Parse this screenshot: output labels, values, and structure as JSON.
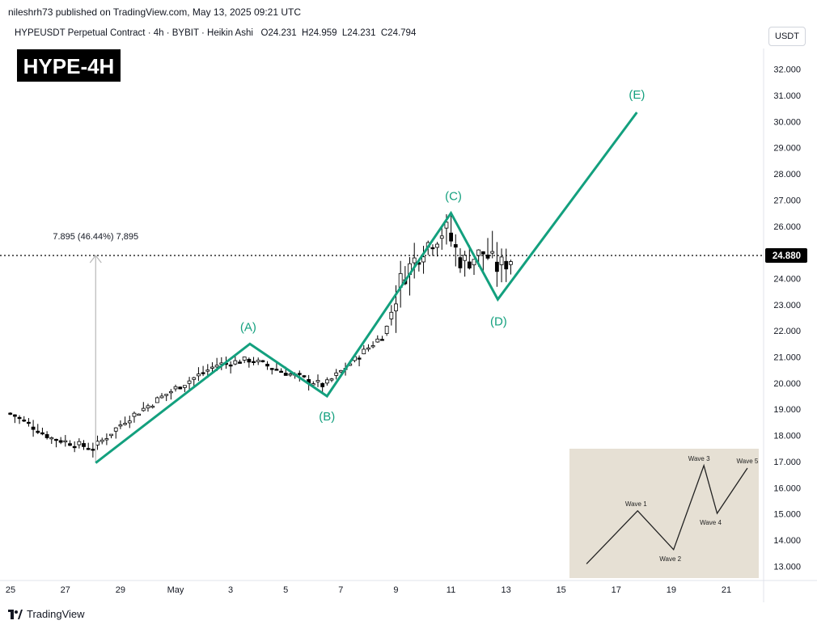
{
  "header": {
    "publisher": "nileshrh73 published on TradingView.com, May 13, 2025 09:21 UTC",
    "symbol": "HYPEUSDT Perpetual Contract",
    "interval": "4h",
    "exchange": "BYBIT",
    "chart_style": "Heikin Ashi",
    "ohlc": {
      "open": "O24.231",
      "high": "H24.959",
      "low": "L24.231",
      "close": "C24.794"
    },
    "currency": "USDT"
  },
  "badge": "HYPE-4H",
  "brand": "TradingView",
  "colors": {
    "wave": "#13a07e",
    "up_candle": "#ffffff",
    "down_candle": "#000000",
    "price_label_bg": "#000000",
    "inset_bg": "#e6e0d4"
  },
  "chart_data": {
    "type": "candlestick",
    "title": "HYPE-4H",
    "ylim": [
      12.5,
      32.8
    ],
    "yticks": [
      "32.000",
      "31.000",
      "30.000",
      "29.000",
      "28.000",
      "27.000",
      "26.000",
      "25.000",
      "24.000",
      "23.000",
      "22.000",
      "21.000",
      "20.000",
      "19.000",
      "18.000",
      "17.000",
      "16.000",
      "15.000",
      "14.000",
      "13.000"
    ],
    "xticks": [
      "25",
      "27",
      "29",
      "May",
      "3",
      "5",
      "7",
      "9",
      "11",
      "13",
      "15",
      "17",
      "19",
      "21"
    ],
    "xtick_days": [
      -6,
      -4,
      -2,
      0,
      2,
      4,
      6,
      8,
      10,
      12,
      14,
      16,
      18,
      20
    ],
    "xlim_days": [
      -6.05,
      21.0
    ],
    "current_price": {
      "value": 24.88,
      "label": "24.880"
    },
    "measure": {
      "label": "7.895 (46.44%) 7,895",
      "day": -2.9,
      "from": 16.95,
      "to": 24.88
    },
    "wave_path": [
      {
        "label": "",
        "day": -2.9,
        "price": 16.95
      },
      {
        "label": "(A)",
        "day": 2.7,
        "price": 21.5
      },
      {
        "label": "(B)",
        "day": 5.5,
        "price": 19.5
      },
      {
        "label": "(C)",
        "day": 10.0,
        "price": 26.5
      },
      {
        "label": "(D)",
        "day": 11.7,
        "price": 23.2
      },
      {
        "label": "(E)",
        "day": 16.75,
        "price": 30.35
      }
    ],
    "trend_anchors": [
      {
        "day": -6.0,
        "price": 18.85
      },
      {
        "day": -4.5,
        "price": 17.9
      },
      {
        "day": -3.0,
        "price": 17.5
      },
      {
        "day": -1.8,
        "price": 18.6
      },
      {
        "day": 0.0,
        "price": 19.8
      },
      {
        "day": 1.5,
        "price": 20.7
      },
      {
        "day": 2.7,
        "price": 20.9
      },
      {
        "day": 4.0,
        "price": 20.4
      },
      {
        "day": 5.4,
        "price": 19.9
      },
      {
        "day": 6.5,
        "price": 20.9
      },
      {
        "day": 7.6,
        "price": 21.9
      },
      {
        "day": 8.2,
        "price": 24.0
      },
      {
        "day": 9.0,
        "price": 25.2
      },
      {
        "day": 9.8,
        "price": 25.9
      },
      {
        "day": 10.4,
        "price": 24.6
      },
      {
        "day": 11.2,
        "price": 25.0
      },
      {
        "day": 11.7,
        "price": 24.4
      },
      {
        "day": 12.2,
        "price": 24.8
      }
    ],
    "candle_days": [
      -6.0,
      12.2
    ],
    "candle_step_days": 0.1667,
    "inset": {
      "labels": [
        "Wave 1",
        "Wave 2",
        "Wave 3",
        "Wave 4",
        "Wave 5"
      ],
      "points": [
        [
          0.09,
          0.11
        ],
        [
          0.36,
          0.52
        ],
        [
          0.55,
          0.22
        ],
        [
          0.71,
          0.87
        ],
        [
          0.78,
          0.5
        ],
        [
          0.94,
          0.85
        ]
      ]
    }
  }
}
